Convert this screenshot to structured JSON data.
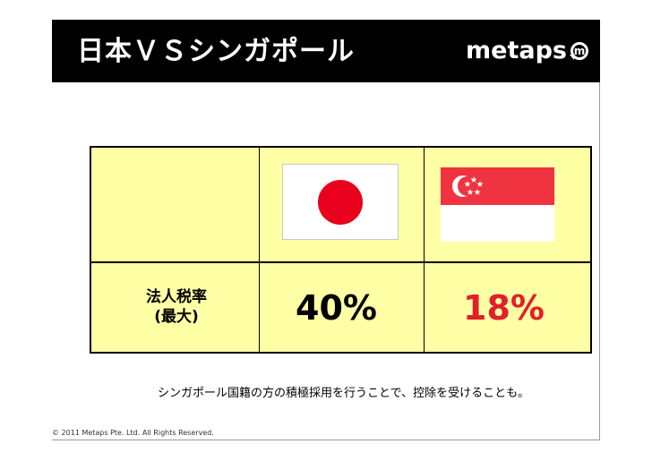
{
  "header": {
    "title": "日本ＶＳシンガポール",
    "logo_text": "metaps",
    "logo_mark": "m"
  },
  "table": {
    "label_line1": "法人税率",
    "label_line2": "(最大)",
    "japan_value": "40%",
    "singapore_value": "18%",
    "japan_flag_icon": "japan-flag-icon",
    "singapore_flag_icon": "singapore-flag-icon"
  },
  "footnote": "シンガポール国籍の方の積極採用を行うことで、控除を受けることも。",
  "copyright": "© 2011 Metaps Pte. Ltd. All Rights Reserved.",
  "colors": {
    "header_bg": "#000000",
    "table_bg": "#ffffa5",
    "singapore_value": "#e0202a",
    "japan_red": "#e8001c",
    "singapore_red": "#ef3340"
  }
}
